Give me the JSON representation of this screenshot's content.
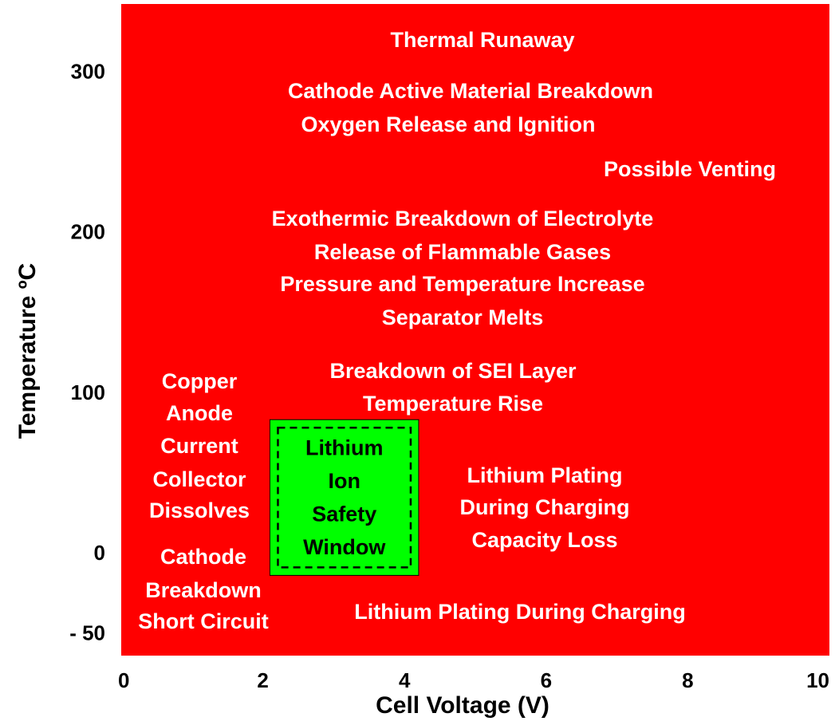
{
  "chart_data": {
    "type": "region",
    "x_label": "Cell Voltage (V)",
    "y_label": "Temperature ºC",
    "xlim": [
      0,
      10
    ],
    "xticks": [
      0,
      2,
      4,
      6,
      8,
      10
    ],
    "ylim": [
      -63,
      343
    ],
    "yticks": [
      300,
      200,
      100,
      0,
      {
        "value": -50,
        "label": "- 50"
      }
    ],
    "background_color": "#ff0000",
    "safe_window": {
      "x": [
        2.1,
        4.2
      ],
      "y": [
        -13,
        84
      ],
      "color": "#00ff00",
      "label": [
        "Lithium",
        "Ion",
        "Safety",
        "Window"
      ]
    },
    "annotations": [
      "Thermal Runaway",
      "Cathode Active Material Breakdown",
      "Oxygen Release and Ignition",
      "Possible Venting",
      "Exothermic Breakdown of Electrolyte",
      "Release of Flammable Gases",
      "Pressure and Temperature Increase",
      "Separator Melts",
      "Breakdown of SEI Layer",
      "Temperature Rise",
      "Copper",
      "Anode",
      "Current",
      "Collector",
      "Dissolves",
      "Cathode",
      "Breakdown",
      "Short Circuit",
      "Lithium Plating",
      "During Charging",
      "Capacity Loss",
      "Lithium Plating During Charging"
    ]
  }
}
